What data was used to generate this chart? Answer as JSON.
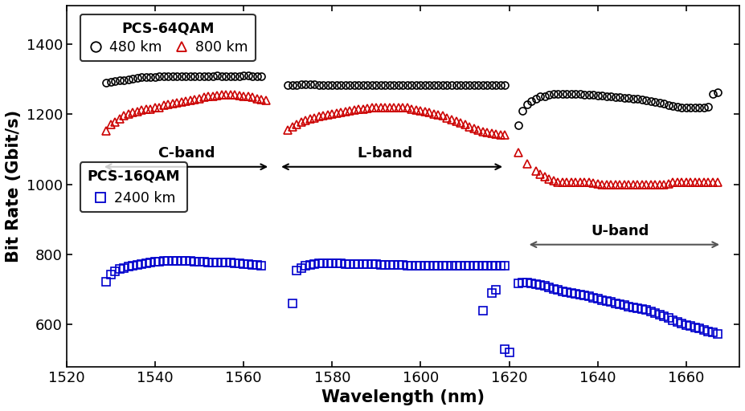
{
  "xlabel": "Wavelength (nm)",
  "ylabel": "Bit Rate (Gbit/s)",
  "xlim": [
    1522,
    1672
  ],
  "ylim": [
    480,
    1510
  ],
  "yticks": [
    600,
    800,
    1000,
    1200,
    1400
  ],
  "xticks": [
    1520,
    1540,
    1560,
    1580,
    1600,
    1620,
    1640,
    1660
  ],
  "circle_480km_cband": {
    "wavelengths": [
      1529,
      1530,
      1531,
      1532,
      1533,
      1534,
      1535,
      1536,
      1537,
      1538,
      1539,
      1540,
      1541,
      1542,
      1543,
      1544,
      1545,
      1546,
      1547,
      1548,
      1549,
      1550,
      1551,
      1552,
      1553,
      1554,
      1555,
      1556,
      1557,
      1558,
      1559,
      1560,
      1561,
      1562,
      1563,
      1564
    ],
    "bitrates": [
      1290,
      1293,
      1295,
      1298,
      1298,
      1300,
      1302,
      1303,
      1305,
      1306,
      1305,
      1306,
      1308,
      1308,
      1308,
      1308,
      1309,
      1308,
      1308,
      1309,
      1309,
      1308,
      1308,
      1309,
      1309,
      1310,
      1309,
      1308,
      1308,
      1308,
      1309,
      1310,
      1310,
      1309,
      1308,
      1308
    ]
  },
  "circle_480km_lband": {
    "wavelengths": [
      1570,
      1571,
      1572,
      1573,
      1574,
      1575,
      1576,
      1577,
      1578,
      1579,
      1580,
      1581,
      1582,
      1583,
      1584,
      1585,
      1586,
      1587,
      1588,
      1589,
      1590,
      1591,
      1592,
      1593,
      1594,
      1595,
      1596,
      1597,
      1598,
      1599,
      1600,
      1601,
      1602,
      1603,
      1604,
      1605,
      1606,
      1607,
      1608,
      1609,
      1610,
      1611,
      1612,
      1613,
      1614,
      1615,
      1616,
      1617,
      1618,
      1619
    ],
    "bitrates": [
      1282,
      1283,
      1284,
      1285,
      1285,
      1285,
      1285,
      1284,
      1284,
      1283,
      1283,
      1283,
      1282,
      1282,
      1282,
      1282,
      1282,
      1282,
      1282,
      1282,
      1282,
      1282,
      1282,
      1282,
      1282,
      1282,
      1282,
      1282,
      1282,
      1282,
      1282,
      1282,
      1282,
      1282,
      1282,
      1282,
      1282,
      1282,
      1282,
      1282,
      1282,
      1282,
      1282,
      1282,
      1282,
      1282,
      1282,
      1282,
      1282,
      1282
    ]
  },
  "circle_480km_uband": {
    "wavelengths": [
      1622,
      1623,
      1624,
      1625,
      1626,
      1627,
      1628,
      1629,
      1630,
      1631,
      1632,
      1633,
      1634,
      1635,
      1636,
      1637,
      1638,
      1639,
      1640,
      1641,
      1642,
      1643,
      1644,
      1645,
      1646,
      1647,
      1648,
      1649,
      1650,
      1651,
      1652,
      1653,
      1654,
      1655,
      1656,
      1657,
      1658,
      1659,
      1660,
      1661,
      1662,
      1663,
      1664,
      1665,
      1666,
      1667
    ],
    "bitrates": [
      1168,
      1210,
      1228,
      1238,
      1245,
      1250,
      1252,
      1255,
      1258,
      1258,
      1258,
      1258,
      1258,
      1258,
      1258,
      1256,
      1255,
      1255,
      1254,
      1253,
      1252,
      1250,
      1249,
      1248,
      1247,
      1246,
      1245,
      1244,
      1242,
      1240,
      1238,
      1236,
      1233,
      1230,
      1227,
      1224,
      1221,
      1218,
      1218,
      1218,
      1218,
      1220,
      1220,
      1222,
      1258,
      1263
    ]
  },
  "tri_800km_cband": {
    "wavelengths": [
      1529,
      1530,
      1531,
      1532,
      1533,
      1534,
      1535,
      1536,
      1537,
      1538,
      1539,
      1540,
      1541,
      1542,
      1543,
      1544,
      1545,
      1546,
      1547,
      1548,
      1549,
      1550,
      1551,
      1552,
      1553,
      1554,
      1555,
      1556,
      1557,
      1558,
      1559,
      1560,
      1561,
      1562,
      1563,
      1564,
      1565
    ],
    "bitrates": [
      1152,
      1170,
      1178,
      1188,
      1195,
      1200,
      1205,
      1208,
      1212,
      1215,
      1215,
      1218,
      1220,
      1225,
      1228,
      1230,
      1232,
      1235,
      1238,
      1240,
      1242,
      1245,
      1248,
      1250,
      1252,
      1253,
      1255,
      1255,
      1255,
      1255,
      1253,
      1252,
      1250,
      1248,
      1245,
      1242,
      1240
    ]
  },
  "tri_800km_lband": {
    "wavelengths": [
      1570,
      1571,
      1572,
      1573,
      1574,
      1575,
      1576,
      1577,
      1578,
      1579,
      1580,
      1581,
      1582,
      1583,
      1584,
      1585,
      1586,
      1587,
      1588,
      1589,
      1590,
      1591,
      1592,
      1593,
      1594,
      1595,
      1596,
      1597,
      1598,
      1599,
      1600,
      1601,
      1602,
      1603,
      1604,
      1605,
      1606,
      1607,
      1608,
      1609,
      1610,
      1611,
      1612,
      1613,
      1614,
      1615,
      1616,
      1617,
      1618,
      1619
    ],
    "bitrates": [
      1155,
      1165,
      1172,
      1178,
      1182,
      1186,
      1190,
      1193,
      1196,
      1198,
      1200,
      1202,
      1205,
      1208,
      1210,
      1212,
      1214,
      1215,
      1216,
      1218,
      1218,
      1218,
      1218,
      1218,
      1218,
      1218,
      1218,
      1218,
      1215,
      1212,
      1210,
      1208,
      1205,
      1200,
      1198,
      1195,
      1190,
      1185,
      1180,
      1175,
      1170,
      1165,
      1160,
      1155,
      1150,
      1148,
      1145,
      1143,
      1142,
      1140
    ]
  },
  "tri_800km_uband": {
    "wavelengths": [
      1622,
      1624,
      1626,
      1627,
      1628,
      1629,
      1630,
      1631,
      1632,
      1633,
      1634,
      1635,
      1636,
      1637,
      1638,
      1639,
      1640,
      1641,
      1642,
      1643,
      1644,
      1645,
      1646,
      1647,
      1648,
      1649,
      1650,
      1651,
      1652,
      1653,
      1654,
      1655,
      1656,
      1657,
      1658,
      1659,
      1660,
      1661,
      1662,
      1663,
      1664,
      1665,
      1666,
      1667
    ],
    "bitrates": [
      1090,
      1058,
      1038,
      1030,
      1022,
      1015,
      1010,
      1005,
      1005,
      1005,
      1005,
      1005,
      1005,
      1005,
      1005,
      1003,
      1002,
      1000,
      1000,
      1000,
      1000,
      1000,
      1000,
      1000,
      1000,
      1000,
      1000,
      1000,
      1000,
      1000,
      1000,
      1000,
      1002,
      1005,
      1005,
      1005,
      1005,
      1005,
      1005,
      1005,
      1005,
      1005,
      1005,
      1005
    ]
  },
  "sq_2400km_cband": {
    "wavelengths": [
      1529,
      1530,
      1531,
      1532,
      1533,
      1534,
      1535,
      1536,
      1537,
      1538,
      1539,
      1540,
      1541,
      1542,
      1543,
      1544,
      1545,
      1546,
      1547,
      1548,
      1549,
      1550,
      1551,
      1552,
      1553,
      1554,
      1555,
      1556,
      1557,
      1558,
      1559,
      1560,
      1561,
      1562,
      1563,
      1564
    ],
    "bitrates": [
      722,
      742,
      752,
      758,
      762,
      766,
      768,
      770,
      772,
      775,
      778,
      780,
      780,
      782,
      782,
      782,
      782,
      782,
      782,
      782,
      780,
      780,
      780,
      778,
      778,
      778,
      778,
      776,
      776,
      775,
      774,
      773,
      772,
      770,
      769,
      768
    ]
  },
  "sq_2400km_lband_gap": {
    "wavelengths": [
      1571
    ],
    "bitrates": [
      660
    ]
  },
  "sq_2400km_lband": {
    "wavelengths": [
      1572,
      1573,
      1574,
      1575,
      1576,
      1577,
      1578,
      1579,
      1580,
      1581,
      1582,
      1583,
      1584,
      1585,
      1586,
      1587,
      1588,
      1589,
      1590,
      1591,
      1592,
      1593,
      1594,
      1595,
      1596,
      1597,
      1598,
      1599,
      1600,
      1601,
      1602,
      1603,
      1604,
      1605,
      1606,
      1607,
      1608,
      1609,
      1610,
      1611,
      1612,
      1613,
      1614,
      1615,
      1616,
      1617,
      1618,
      1619
    ],
    "bitrates": [
      755,
      762,
      768,
      770,
      772,
      775,
      775,
      775,
      775,
      775,
      775,
      773,
      773,
      773,
      773,
      772,
      772,
      772,
      772,
      770,
      770,
      770,
      770,
      770,
      770,
      768,
      768,
      768,
      768,
      768,
      768,
      768,
      768,
      768,
      768,
      768,
      768,
      768,
      768,
      768,
      768,
      768,
      768,
      768,
      768,
      768,
      768,
      768
    ]
  },
  "sq_2400km_scatter1": {
    "wavelengths": [
      1614,
      1616,
      1617
    ],
    "bitrates": [
      640,
      690,
      700
    ]
  },
  "sq_2400km_scatter2": {
    "wavelengths": [
      1619,
      1620
    ],
    "bitrates": [
      530,
      520
    ]
  },
  "sq_2400km_uband": {
    "wavelengths": [
      1622,
      1623,
      1624,
      1625,
      1626,
      1627,
      1628,
      1629,
      1630,
      1631,
      1632,
      1633,
      1634,
      1635,
      1636,
      1637,
      1638,
      1639,
      1640,
      1641,
      1642,
      1643,
      1644,
      1645,
      1646,
      1647,
      1648,
      1649,
      1650,
      1651,
      1652,
      1653,
      1654,
      1655,
      1656,
      1657,
      1658,
      1659,
      1660,
      1661,
      1662,
      1663,
      1664,
      1665,
      1666,
      1667
    ],
    "bitrates": [
      718,
      720,
      720,
      718,
      715,
      712,
      710,
      706,
      702,
      698,
      695,
      692,
      690,
      688,
      685,
      682,
      680,
      676,
      673,
      670,
      667,
      664,
      661,
      658,
      655,
      652,
      649,
      647,
      645,
      642,
      638,
      633,
      628,
      623,
      618,
      613,
      608,
      603,
      598,
      595,
      592,
      588,
      584,
      580,
      577,
      574
    ]
  },
  "colors": {
    "circle": "#000000",
    "triangle": "#cc0000",
    "square": "#0000cc"
  }
}
